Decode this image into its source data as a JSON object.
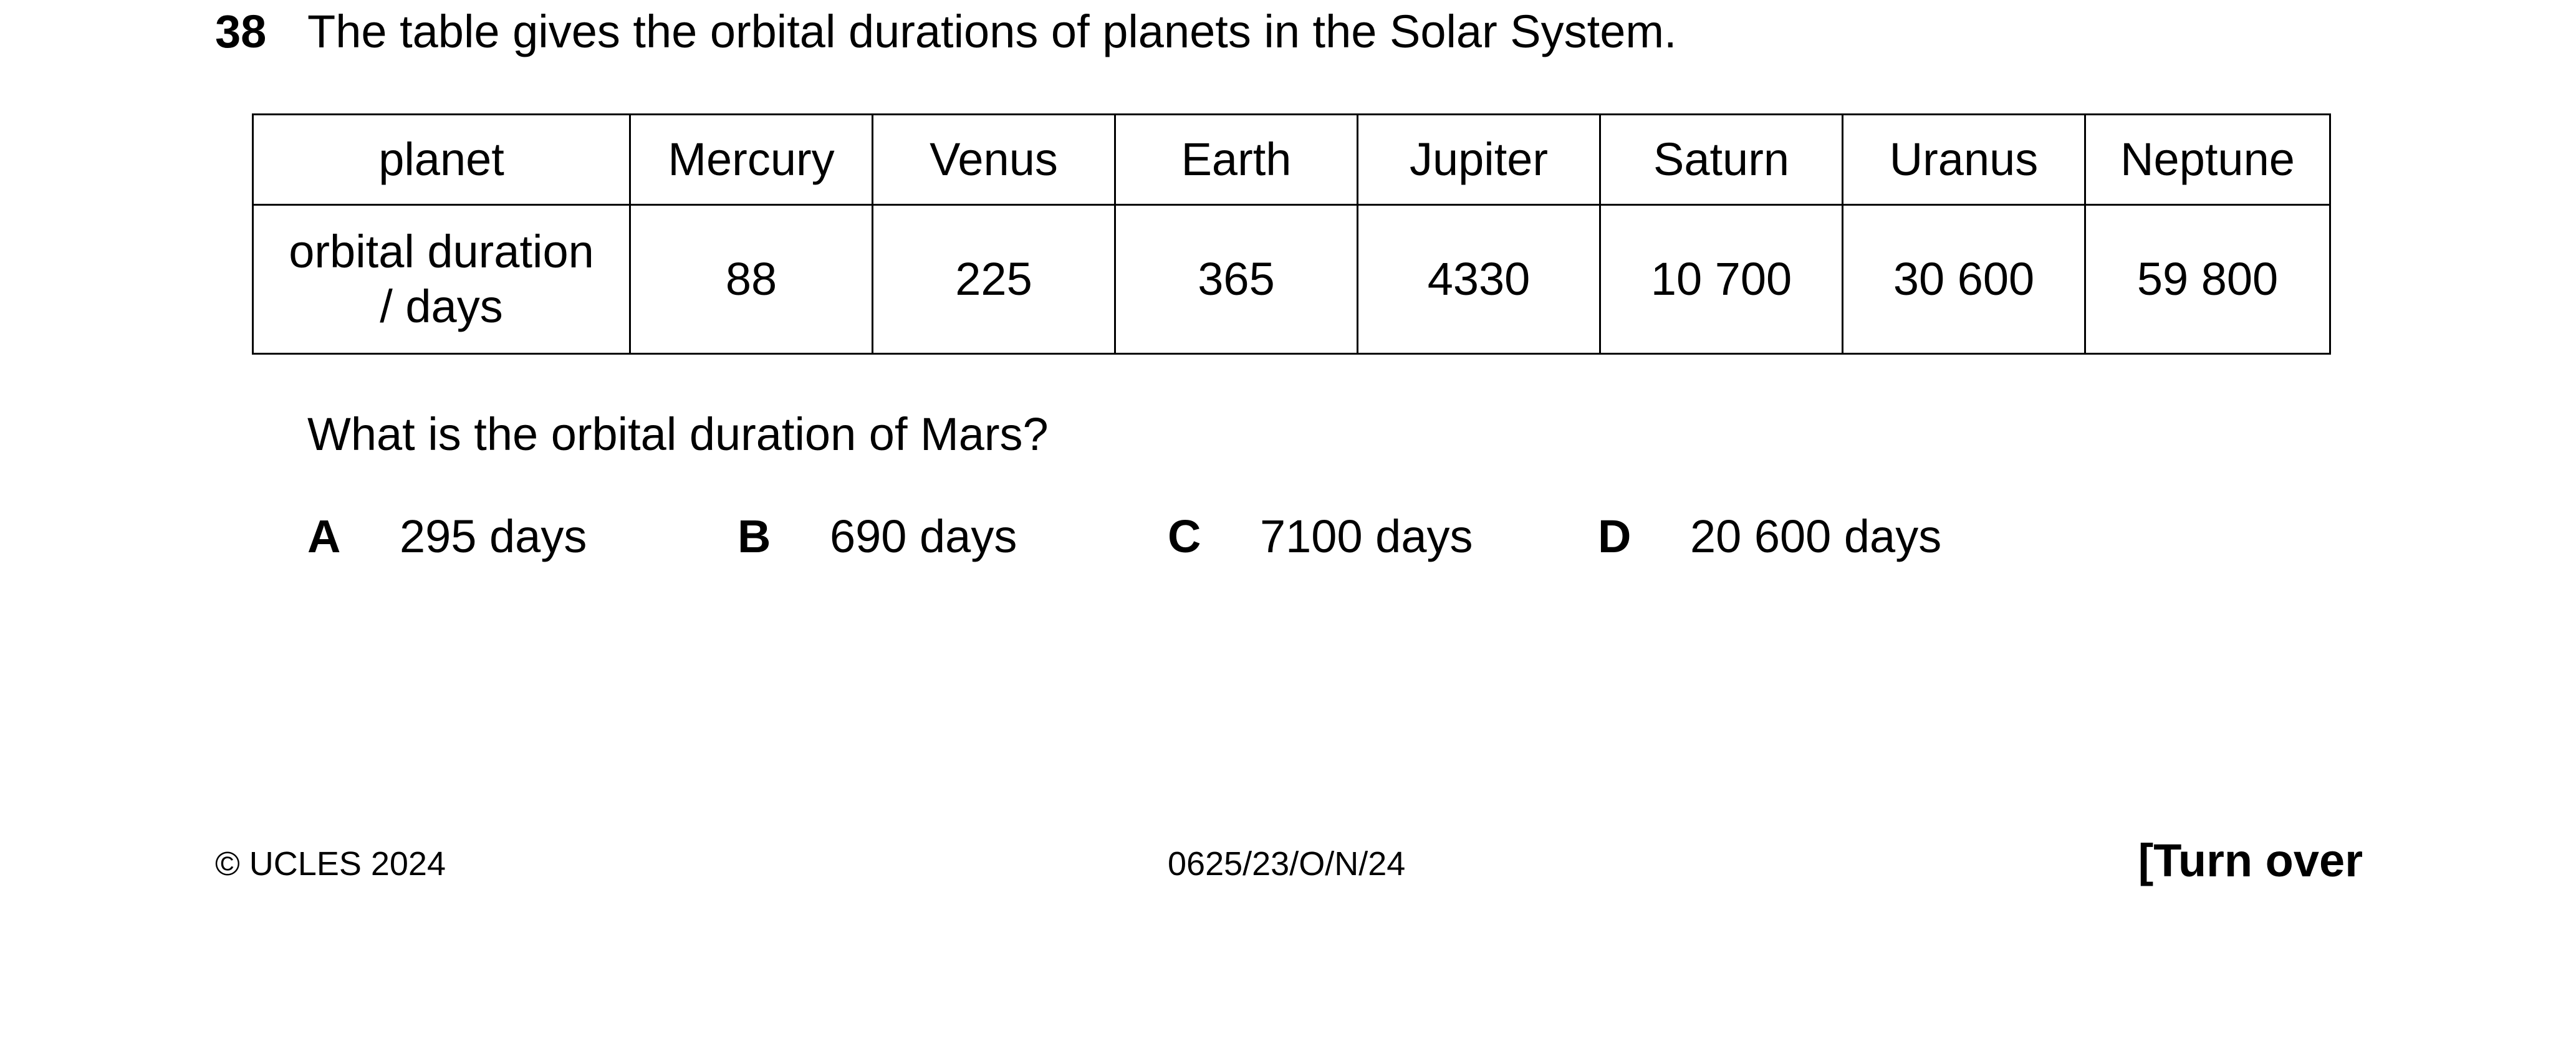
{
  "question": {
    "number": "38",
    "stem": "The table gives the orbital durations of planets in the Solar System.",
    "prompt": "What is the orbital duration of Mars?",
    "options": [
      {
        "letter": "A",
        "text": "295 days"
      },
      {
        "letter": "B",
        "text": "690 days"
      },
      {
        "letter": "C",
        "text": "7100 days"
      },
      {
        "letter": "D",
        "text": "20 600 days"
      }
    ]
  },
  "table": {
    "header_label": "planet",
    "row_label_line1": "orbital duration",
    "row_label_line2": "/ days",
    "planets": [
      "Mercury",
      "Venus",
      "Earth",
      "Jupiter",
      "Saturn",
      "Uranus",
      "Neptune"
    ],
    "durations": [
      "88",
      "225",
      "365",
      "4330",
      "10 700",
      "30 600",
      "59 800"
    ]
  },
  "footer": {
    "copyright": "© UCLES 2024",
    "code": "0625/23/O/N/24",
    "turn_over": "[Turn over"
  }
}
